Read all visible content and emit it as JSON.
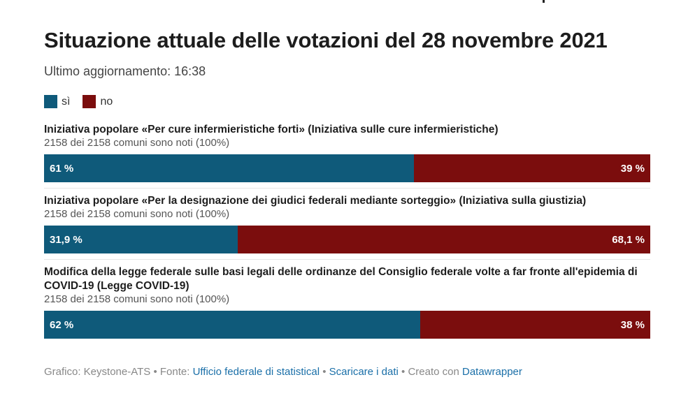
{
  "header": {
    "title": "Situazione attuale delle votazioni del 28 novembre 2021",
    "subtitle": "Ultimo aggiornamento: 16:38"
  },
  "legend": [
    {
      "label": "sì",
      "color": "#0f5a7a"
    },
    {
      "label": "no",
      "color": "#7b0d0d"
    }
  ],
  "chart_data": {
    "type": "bar",
    "orientation": "horizontal-stacked-100",
    "series": [
      {
        "name": "sì",
        "color": "#0f5a7a",
        "values": [
          61,
          31.9,
          62
        ]
      },
      {
        "name": "no",
        "color": "#7b0d0d",
        "values": [
          39,
          68.1,
          38
        ]
      }
    ],
    "rows": [
      {
        "title": "Iniziativa popolare «Per cure infermieristiche forti» (Iniziativa sulle cure infermieristiche)",
        "note": "2158 dei 2158 comuni sono noti (100%)",
        "yes": 61,
        "no": 39,
        "yes_label": "61 %",
        "no_label": "39 %"
      },
      {
        "title": "Iniziativa popolare «Per la designazione dei giudici federali mediante sorteggio» (Iniziativa sulla giustizia)",
        "note": "2158 dei 2158 comuni sono noti (100%)",
        "yes": 31.9,
        "no": 68.1,
        "yes_label": "31,9 %",
        "no_label": "68,1 %"
      },
      {
        "title": "Modifica della legge federale sulle basi legali delle ordinanze del Consiglio federale volte a far fronte all'epidemia di COVID-19 (Legge COVID-19)",
        "note": "2158 dei 2158 comuni sono noti (100%)",
        "yes": 62,
        "no": 38,
        "yes_label": "62 %",
        "no_label": "38 %"
      }
    ]
  },
  "footer": {
    "prefix": "Grafico: Keystone-ATS • Fonte: ",
    "source_link": "Ufficio federale di statistical",
    "sep1": " • ",
    "download_link": "Scaricare i dati",
    "sep2": " • Creato con ",
    "tool_link": "Datawrapper"
  }
}
